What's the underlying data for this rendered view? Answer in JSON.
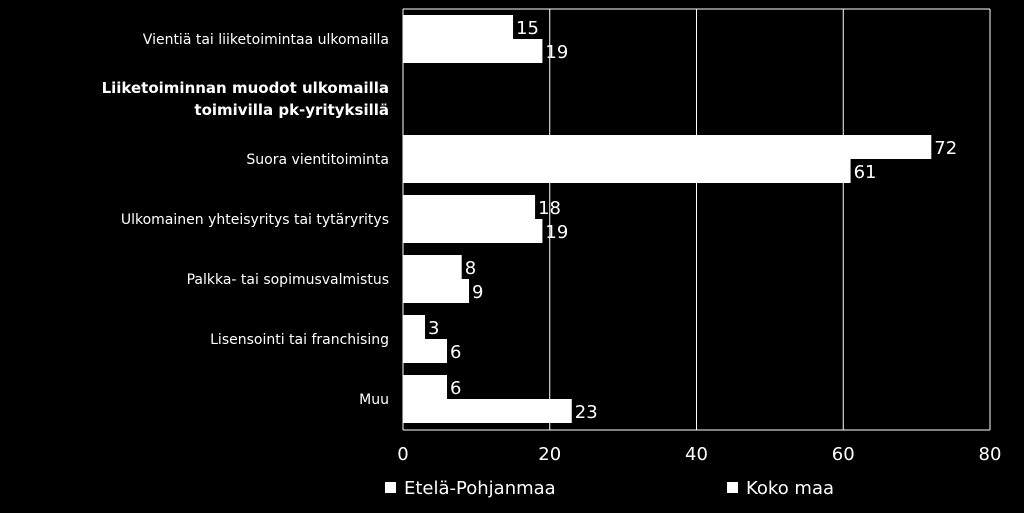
{
  "chart_data": {
    "type": "bar",
    "orientation": "horizontal",
    "rows": [
      {
        "label": "Vientiä tai liiketoimintaa ulkomailla",
        "kind": "category",
        "values": [
          15,
          19
        ]
      },
      {
        "label": "Liiketoiminnan muodot ulkomailla toimivilla pk-yrityksillä",
        "label_lines": [
          "Liiketoiminnan muodot ulkomailla",
          "toimivilla pk-yrityksillä"
        ],
        "kind": "heading"
      },
      {
        "label": "Suora vientitoiminta",
        "kind": "category",
        "values": [
          72,
          61
        ]
      },
      {
        "label": "Ulkomainen yhteisyritys tai tytäryritys",
        "kind": "category",
        "values": [
          18,
          19
        ]
      },
      {
        "label": "Palkka- tai sopimusvalmistus",
        "kind": "category",
        "values": [
          8,
          9
        ]
      },
      {
        "label": "Lisensointi tai franchising",
        "kind": "category",
        "values": [
          3,
          6
        ]
      },
      {
        "label": "Muu",
        "kind": "category",
        "values": [
          6,
          23
        ]
      }
    ],
    "series": [
      {
        "name": "Etelä-Pohjanmaa",
        "color": "#ffffff"
      },
      {
        "name": "Koko maa",
        "color": "#ffffff"
      }
    ],
    "xlim": [
      0,
      80
    ],
    "xticks": [
      0,
      20,
      40,
      60,
      80
    ],
    "grid": "vertical",
    "legend_position": "bottom",
    "background": "#000000",
    "bar_color": "#ffffff",
    "grid_color": "#ffffff",
    "axis_color": "#ffffff"
  }
}
